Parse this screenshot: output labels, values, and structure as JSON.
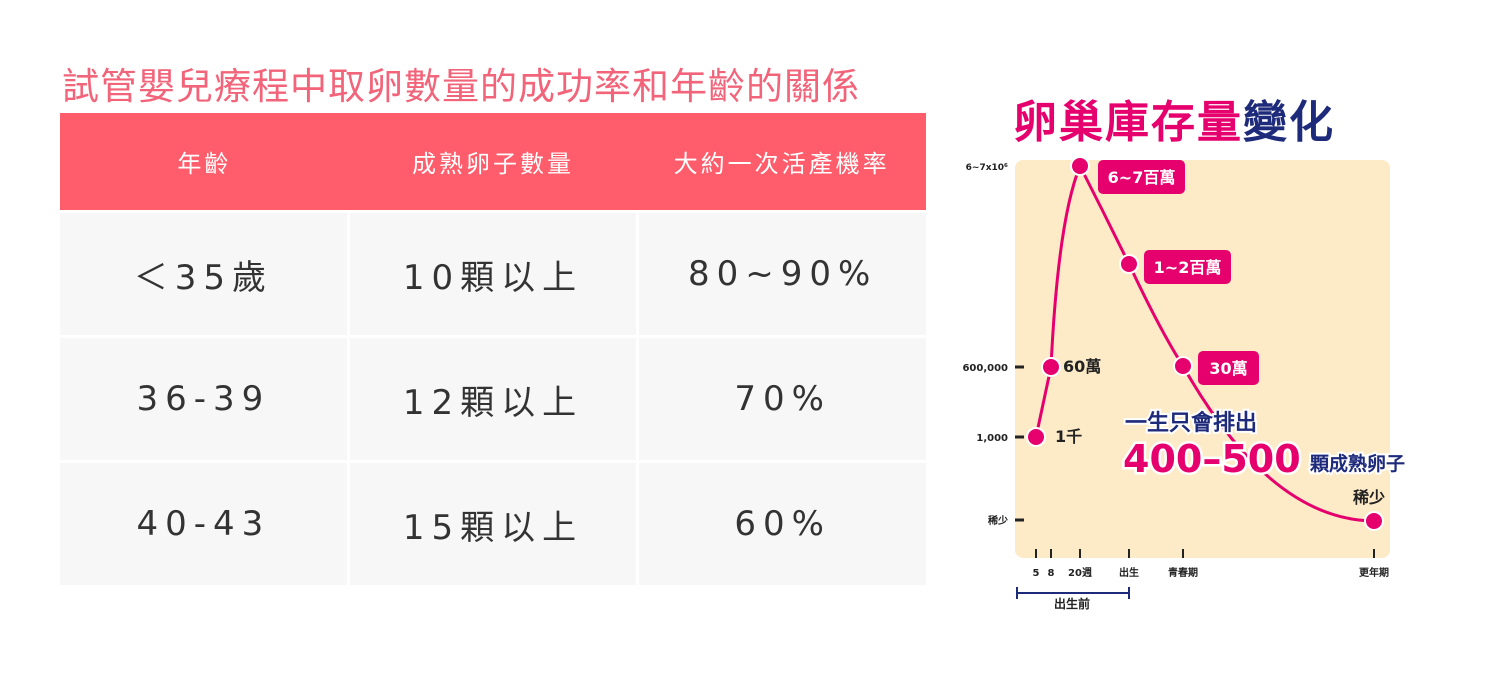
{
  "title": "試管嬰兒療程中取卵數量的成功率和年齡的關係",
  "table": {
    "headers": [
      "年齡",
      "成熟卵子數量",
      "大約一次活產機率"
    ],
    "rows": [
      [
        "＜35歲",
        "10顆以上",
        "80~90%"
      ],
      [
        "36-39",
        "12顆以上",
        "70%"
      ],
      [
        "40-43",
        "15顆以上",
        "60%"
      ]
    ]
  },
  "chart_data": {
    "type": "line",
    "title_part1": "卵巢庫存量",
    "title_part2": "變化",
    "x_ticks": [
      "5",
      "8",
      "20週",
      "出生",
      "青春期",
      "更年期"
    ],
    "y_ticks": [
      "6~7x10⁶",
      "600,000",
      "1,000",
      "稀少"
    ],
    "points": [
      {
        "x": "5",
        "label": "1千"
      },
      {
        "x": "8",
        "label": "60萬"
      },
      {
        "x": "20週",
        "label": "6~7百萬"
      },
      {
        "x": "出生",
        "label": "1~2百萬"
      },
      {
        "x": "青春期",
        "label": "30萬"
      },
      {
        "x": "更年期",
        "label": "稀少"
      }
    ],
    "bracket_label": "出生前",
    "annotation_line1": "一生只會排出",
    "annotation_number": "400–500",
    "annotation_suffix": "顆成熟卵子",
    "colors": {
      "line": "#e6006e",
      "panel": "#fdebc8",
      "navy": "#1e2a7a"
    }
  }
}
